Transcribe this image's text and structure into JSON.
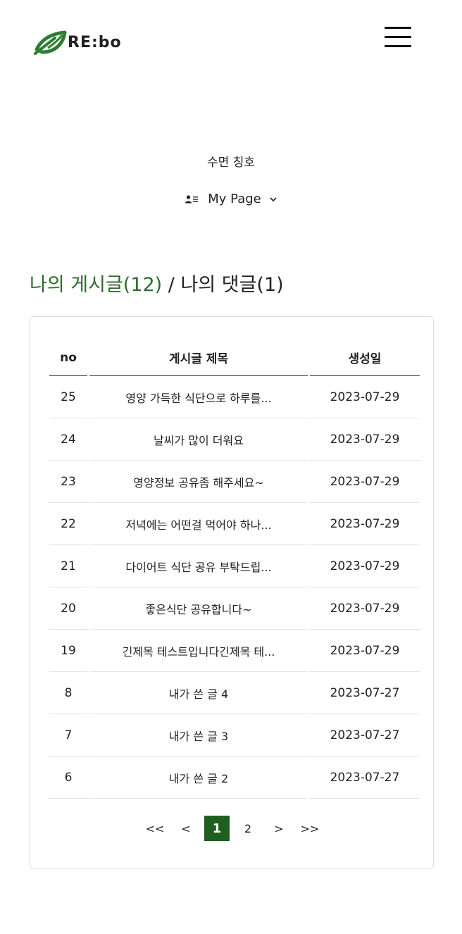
{
  "header": {
    "logo_text": "RE:bo",
    "menu_icon": "hamburger-menu-icon",
    "logo_color": "#2e7d32"
  },
  "profile": {
    "title_badge": "수면 칭호",
    "mypage_label": "My Page",
    "mypage_icon": "user-list-icon",
    "dropdown_icon": "chevron-down-icon"
  },
  "section": {
    "posts_tab": "나의 게시글(12)",
    "separator": " / ",
    "comments_tab": "나의 댓글(1)",
    "active_color": "#2e6b2e"
  },
  "table": {
    "headers": {
      "no": "no",
      "title": "게시글 제목",
      "date": "생성일"
    },
    "rows": [
      {
        "no": "25",
        "title": "영양 가득한 식단으로 하루를...",
        "date": "2023-07-29"
      },
      {
        "no": "24",
        "title": "날씨가 많이 더워요",
        "date": "2023-07-29"
      },
      {
        "no": "23",
        "title": "영양정보 공유좀 해주세요~",
        "date": "2023-07-29"
      },
      {
        "no": "22",
        "title": "저녁에는 어떤걸 먹어야 하나...",
        "date": "2023-07-29"
      },
      {
        "no": "21",
        "title": "다이어트 식단 공유 부탁드립...",
        "date": "2023-07-29"
      },
      {
        "no": "20",
        "title": "좋은식단 공유합니다~",
        "date": "2023-07-29"
      },
      {
        "no": "19",
        "title": "긴제목 테스트입니다긴제목 테...",
        "date": "2023-07-29"
      },
      {
        "no": "8",
        "title": "내가 쓴 글 4",
        "date": "2023-07-27"
      },
      {
        "no": "7",
        "title": "내가 쓴 글 3",
        "date": "2023-07-27"
      },
      {
        "no": "6",
        "title": "내가 쓴 글 2",
        "date": "2023-07-27"
      }
    ]
  },
  "pagination": {
    "first": "<<",
    "prev": "<",
    "pages": [
      "1",
      "2"
    ],
    "current": "1",
    "next": ">",
    "last": ">>",
    "active_color": "#1e5e20"
  }
}
